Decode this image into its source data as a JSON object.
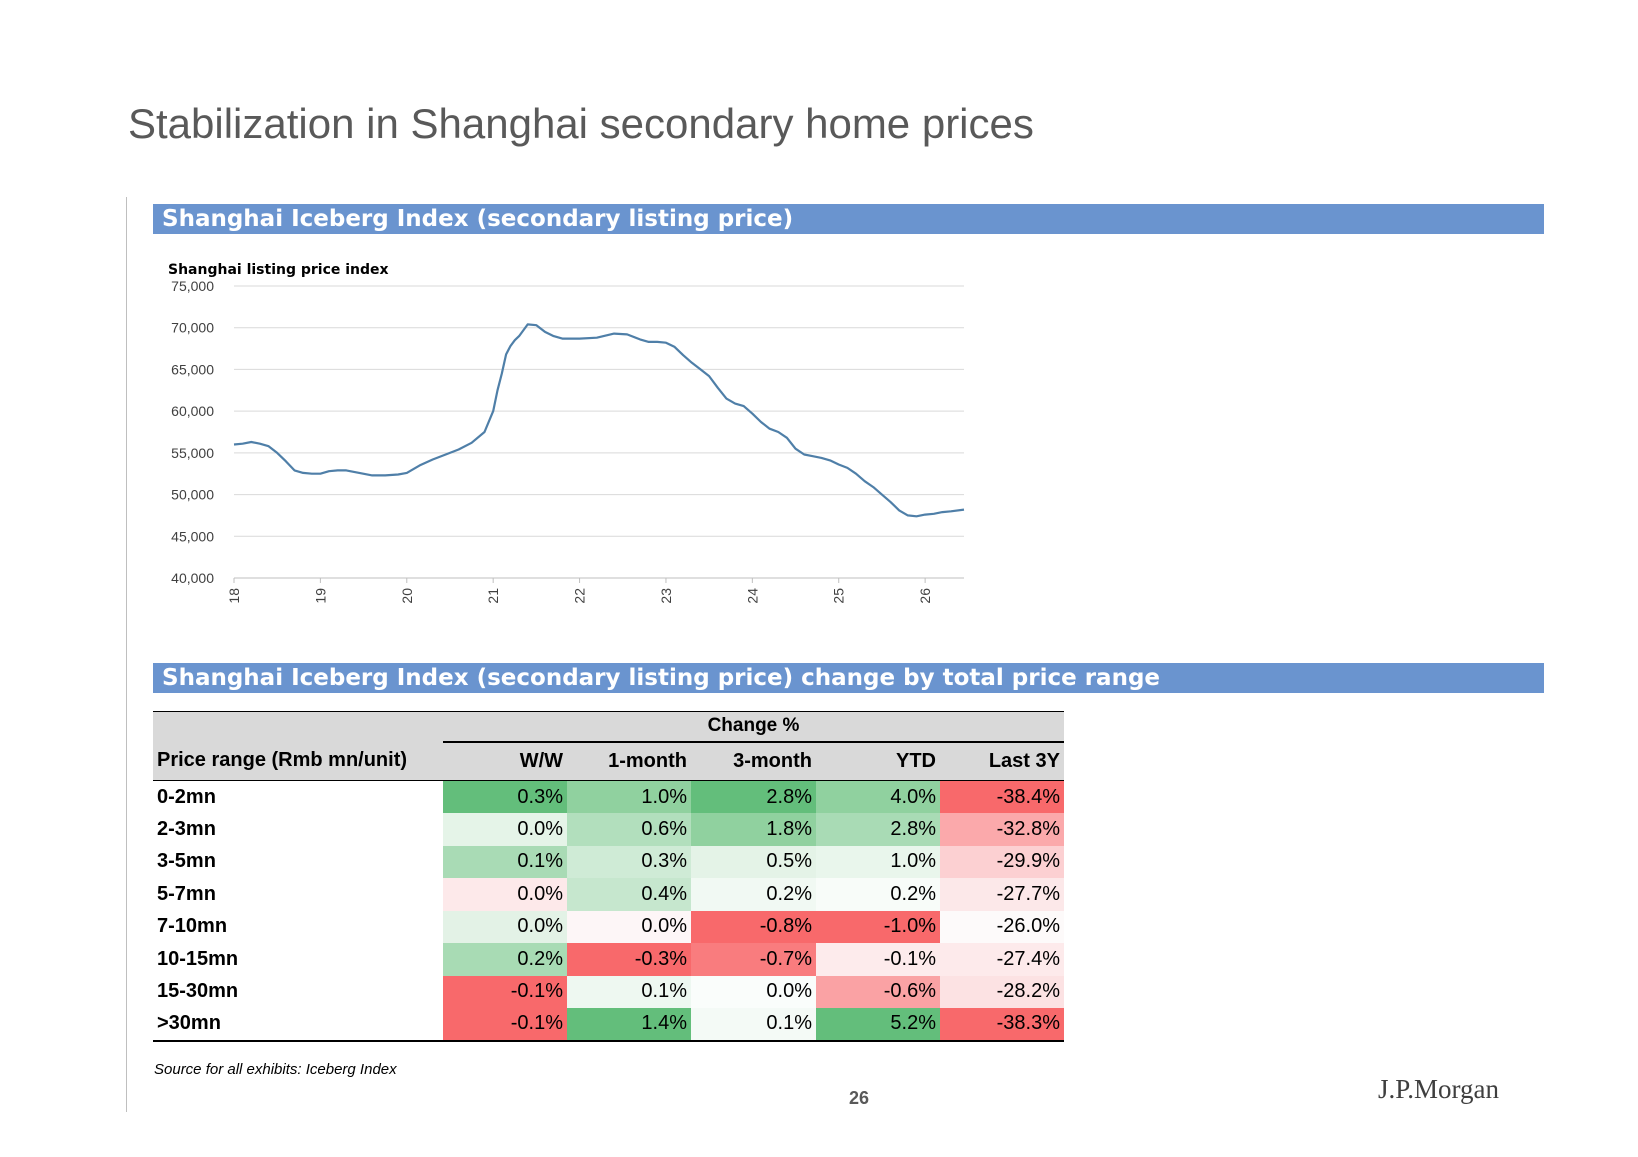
{
  "title": "Stabilization in Shanghai secondary home prices",
  "section1_title": "Shanghai Iceberg Index (secondary listing price)",
  "section2_title": "Shanghai Iceberg Index (secondary listing price) change by total price range",
  "chart_data": {
    "type": "line",
    "title": "",
    "ylabel": "Shanghai listing price index",
    "xlabel": "",
    "ylim": [
      40000,
      75000
    ],
    "yticks": [
      40000,
      45000,
      50000,
      55000,
      60000,
      65000,
      70000,
      75000
    ],
    "ytick_labels": [
      "40,000",
      "45,000",
      "50,000",
      "55,000",
      "60,000",
      "65,000",
      "70,000",
      "75,000"
    ],
    "xlim": [
      2018,
      2026.45
    ],
    "xticks": [
      2018,
      2019,
      2020,
      2021,
      2022,
      2023,
      2024,
      2025,
      2026
    ],
    "xtick_labels": [
      "18",
      "19",
      "20",
      "21",
      "22",
      "23",
      "24",
      "25",
      "26"
    ],
    "grid": "horizontal",
    "color": "#4f7fa8",
    "x": [
      2018.0,
      2018.1,
      2018.2,
      2018.3,
      2018.4,
      2018.5,
      2018.6,
      2018.7,
      2018.8,
      2018.9,
      2019.0,
      2019.1,
      2019.2,
      2019.3,
      2019.45,
      2019.6,
      2019.75,
      2019.9,
      2020.0,
      2020.15,
      2020.3,
      2020.45,
      2020.6,
      2020.75,
      2020.9,
      2021.0,
      2021.05,
      2021.1,
      2021.15,
      2021.2,
      2021.25,
      2021.3,
      2021.4,
      2021.5,
      2021.6,
      2021.7,
      2021.8,
      2022.0,
      2022.2,
      2022.4,
      2022.55,
      2022.7,
      2022.8,
      2022.9,
      2023.0,
      2023.1,
      2023.2,
      2023.3,
      2023.4,
      2023.5,
      2023.6,
      2023.7,
      2023.8,
      2023.9,
      2024.0,
      2024.1,
      2024.2,
      2024.3,
      2024.4,
      2024.5,
      2024.6,
      2024.7,
      2024.8,
      2024.9,
      2025.0,
      2025.1,
      2025.2,
      2025.3,
      2025.4,
      2025.5,
      2025.6,
      2025.7,
      2025.8,
      2025.9,
      2026.0,
      2026.1,
      2026.2,
      2026.3,
      2026.45
    ],
    "values": [
      56000,
      56100,
      56300,
      56100,
      55800,
      55000,
      54000,
      52900,
      52600,
      52500,
      52500,
      52800,
      52900,
      52900,
      52600,
      52300,
      52300,
      52400,
      52600,
      53500,
      54200,
      54800,
      55400,
      56200,
      57500,
      60000,
      62500,
      64500,
      66800,
      67800,
      68500,
      69000,
      70400,
      70300,
      69500,
      69000,
      68700,
      68700,
      68800,
      69300,
      69200,
      68600,
      68300,
      68300,
      68200,
      67700,
      66700,
      65800,
      65000,
      64200,
      62800,
      61500,
      60900,
      60600,
      59700,
      58700,
      57900,
      57500,
      56800,
      55500,
      54800,
      54600,
      54400,
      54100,
      53600,
      53200,
      52500,
      51600,
      50900,
      50000,
      49100,
      48100,
      47500,
      47400,
      47600,
      47700,
      47900,
      48000,
      48200
    ]
  },
  "table": {
    "group_header": "Change %",
    "columns": [
      "Price range (Rmb mn/unit)",
      "W/W",
      "1-month",
      "3-month",
      "YTD",
      "Last 3Y"
    ],
    "rows": [
      {
        "label": "0-2mn",
        "values": [
          "0.3%",
          "1.0%",
          "2.8%",
          "4.0%",
          "-38.4%"
        ],
        "colors": [
          "#63be7b",
          "#90d19f",
          "#63be7b",
          "#90d19f",
          "#f8696b"
        ]
      },
      {
        "label": "2-3mn",
        "values": [
          "0.0%",
          "0.6%",
          "1.8%",
          "2.8%",
          "-32.8%"
        ],
        "colors": [
          "#e5f4e8",
          "#b2dfbd",
          "#90d19f",
          "#a9dbb5",
          "#fba9ab"
        ]
      },
      {
        "label": "3-5mn",
        "values": [
          "0.1%",
          "0.3%",
          "0.5%",
          "1.0%",
          "-29.9%"
        ],
        "colors": [
          "#a9dbb5",
          "#cfebd6",
          "#e4f3e7",
          "#e9f6ec",
          "#fcd0d2"
        ]
      },
      {
        "label": "5-7mn",
        "values": [
          "0.0%",
          "0.4%",
          "0.2%",
          "0.2%",
          "-27.7%"
        ],
        "colors": [
          "#fde9ea",
          "#c6e7ce",
          "#f1f9f3",
          "#f8fcf9",
          "#fce8e9"
        ]
      },
      {
        "label": "7-10mn",
        "values": [
          "0.0%",
          "0.0%",
          "-0.8%",
          "-1.0%",
          "-26.0%"
        ],
        "colors": [
          "#e3f2e6",
          "#fdf6f7",
          "#f8696b",
          "#f8696b",
          "#fdfafa"
        ]
      },
      {
        "label": "10-15mn",
        "values": [
          "0.2%",
          "-0.3%",
          "-0.7%",
          "-0.1%",
          "-27.4%"
        ],
        "colors": [
          "#a8dbb4",
          "#f8696b",
          "#f97c7e",
          "#fdebec",
          "#fdeaeb"
        ]
      },
      {
        "label": "15-30mn",
        "values": [
          "-0.1%",
          "0.1%",
          "0.0%",
          "-0.6%",
          "-28.2%"
        ],
        "colors": [
          "#f8696b",
          "#eef8f1",
          "#fafdfb",
          "#faa2a4",
          "#fce2e3"
        ]
      },
      {
        "label": ">30mn",
        "values": [
          "-0.1%",
          "1.4%",
          "0.1%",
          "5.2%",
          "-38.3%"
        ],
        "colors": [
          "#f8696b",
          "#63be7b",
          "#f4faf6",
          "#63be7b",
          "#f8696b"
        ]
      }
    ]
  },
  "source": "Source for all exhibits: Iceberg Index",
  "page_number": "26",
  "logo": "J.P.Morgan"
}
